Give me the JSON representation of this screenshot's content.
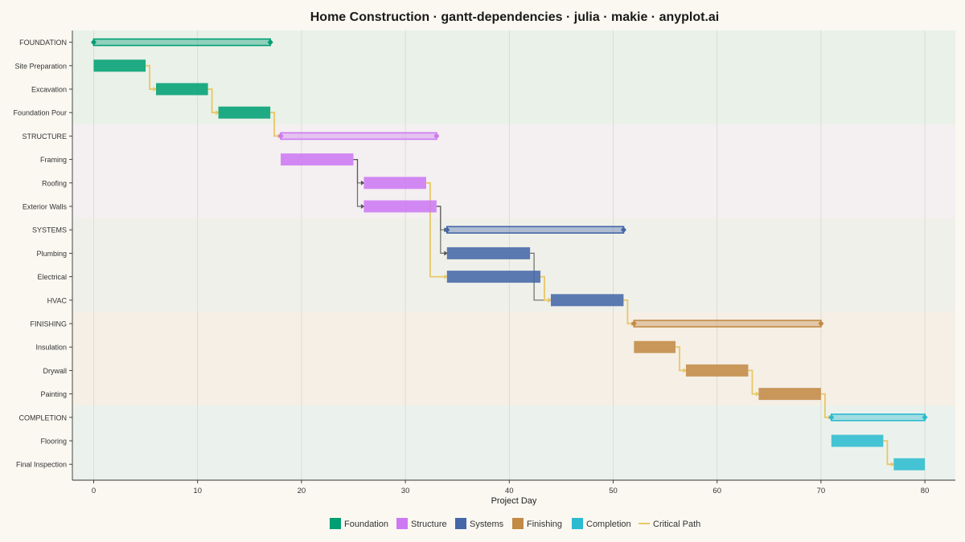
{
  "chart_data": {
    "type": "gantt",
    "title": "Home Construction · gantt-dependencies · julia · makie · anyplot.ai",
    "xlabel": "Project Day",
    "xlim": [
      -2,
      80.5
    ],
    "xticks": [
      0,
      10,
      20,
      30,
      40,
      50,
      60,
      70,
      80
    ],
    "grid": true,
    "legend_position": "bottom-center",
    "phases": [
      {
        "name": "FOUNDATION",
        "legend": "Foundation",
        "color": "#009E73",
        "band": "#e9f1e8",
        "start": 0,
        "end": 17
      },
      {
        "name": "STRUCTURE",
        "legend": "Structure",
        "color": "#CC79F2",
        "band": "#f4eff1",
        "start": 18,
        "end": 33
      },
      {
        "name": "SYSTEMS",
        "legend": "Systems",
        "color": "#4467A8",
        "band": "#eff0ea",
        "start": 34,
        "end": 51
      },
      {
        "name": "FINISHING",
        "legend": "Finishing",
        "color": "#C28A45",
        "band": "#f5efe5",
        "start": 52,
        "end": 70
      },
      {
        "name": "COMPLETION",
        "legend": "Completion",
        "color": "#2BBBD0",
        "band": "#ebf2ed",
        "start": 71,
        "end": 80
      }
    ],
    "tasks": [
      {
        "name": "Site Preparation",
        "phase": 0,
        "start": 0,
        "end": 5
      },
      {
        "name": "Excavation",
        "phase": 0,
        "start": 6,
        "end": 11
      },
      {
        "name": "Foundation Pour",
        "phase": 0,
        "start": 12,
        "end": 17
      },
      {
        "name": "Framing",
        "phase": 1,
        "start": 18,
        "end": 25
      },
      {
        "name": "Roofing",
        "phase": 1,
        "start": 26,
        "end": 32
      },
      {
        "name": "Exterior Walls",
        "phase": 1,
        "start": 26,
        "end": 33
      },
      {
        "name": "Plumbing",
        "phase": 2,
        "start": 34,
        "end": 42
      },
      {
        "name": "Electrical",
        "phase": 2,
        "start": 34,
        "end": 43
      },
      {
        "name": "HVAC",
        "phase": 2,
        "start": 44,
        "end": 51
      },
      {
        "name": "Insulation",
        "phase": 3,
        "start": 52,
        "end": 56
      },
      {
        "name": "Drywall",
        "phase": 3,
        "start": 57,
        "end": 63
      },
      {
        "name": "Painting",
        "phase": 3,
        "start": 64,
        "end": 70
      },
      {
        "name": "Flooring",
        "phase": 4,
        "start": 71,
        "end": 76
      },
      {
        "name": "Final Inspection",
        "phase": 4,
        "start": 77,
        "end": 80
      }
    ],
    "dependencies": [
      {
        "from": "Site Preparation",
        "to": "Excavation",
        "critical": true
      },
      {
        "from": "Excavation",
        "to": "Foundation Pour",
        "critical": true
      },
      {
        "from": "Foundation Pour",
        "to": "STRUCTURE",
        "critical": true
      },
      {
        "from": "Framing",
        "to": "Roofing",
        "critical": false
      },
      {
        "from": "Framing",
        "to": "Exterior Walls",
        "critical": false
      },
      {
        "from": "Roofing",
        "to": "Electrical",
        "critical": true
      },
      {
        "from": "Exterior Walls",
        "to": "Plumbing",
        "critical": false
      },
      {
        "from": "Exterior Walls",
        "to": "SYSTEMS",
        "critical": false
      },
      {
        "from": "Plumbing",
        "to": "HVAC",
        "critical": false
      },
      {
        "from": "Electrical",
        "to": "HVAC",
        "critical": true
      },
      {
        "from": "HVAC",
        "to": "FINISHING",
        "critical": true
      },
      {
        "from": "Insulation",
        "to": "Drywall",
        "critical": true
      },
      {
        "from": "Drywall",
        "to": "Painting",
        "critical": true
      },
      {
        "from": "Painting",
        "to": "COMPLETION",
        "critical": true
      },
      {
        "from": "Flooring",
        "to": "Final Inspection",
        "critical": true
      }
    ],
    "critical_color": "#E8C766",
    "dependency_color": "#555555",
    "legend": [
      "Foundation",
      "Structure",
      "Systems",
      "Finishing",
      "Completion",
      "Critical Path"
    ]
  }
}
